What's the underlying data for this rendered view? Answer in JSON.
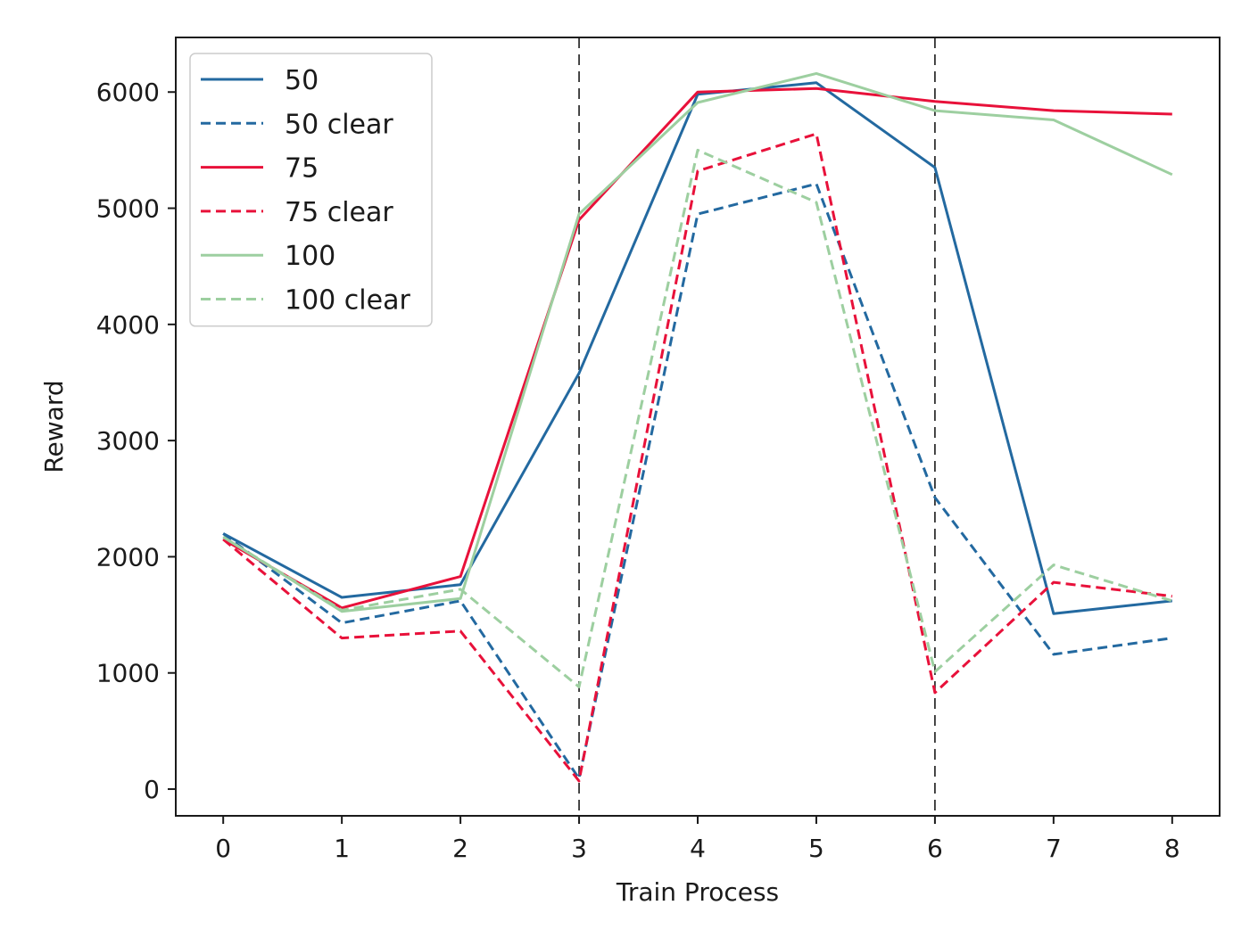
{
  "chart_data": {
    "type": "line",
    "xlabel": "Train Process",
    "ylabel": "Reward",
    "xlim": [
      -0.4,
      8.4
    ],
    "ylim": [
      -230,
      6470
    ],
    "x_ticks": [
      0,
      1,
      2,
      3,
      4,
      5,
      6,
      7,
      8
    ],
    "y_ticks": [
      0,
      1000,
      2000,
      3000,
      4000,
      5000,
      6000
    ],
    "vlines": [
      3,
      6
    ],
    "grid": false,
    "legend_position": "upper left",
    "x": [
      0,
      1,
      2,
      3,
      4,
      5,
      6,
      7,
      8
    ],
    "series": [
      {
        "name": "50",
        "style": "solid",
        "color": "#2369a0",
        "values": [
          2200,
          1650,
          1760,
          3580,
          5980,
          6080,
          5350,
          1510,
          1620
        ]
      },
      {
        "name": "50 clear",
        "style": "dashed",
        "color": "#2369a0",
        "values": [
          2200,
          1430,
          1620,
          90,
          4950,
          5210,
          2510,
          1160,
          1300
        ]
      },
      {
        "name": "75",
        "style": "solid",
        "color": "#e8113a",
        "values": [
          2150,
          1560,
          1830,
          4900,
          6000,
          6030,
          5920,
          5840,
          5810
        ]
      },
      {
        "name": "75 clear",
        "style": "dashed",
        "color": "#e8113a",
        "values": [
          2150,
          1300,
          1360,
          70,
          5320,
          5640,
          830,
          1780,
          1660
        ]
      },
      {
        "name": "100",
        "style": "solid",
        "color": "#9dcfa0",
        "values": [
          2170,
          1530,
          1640,
          4950,
          5910,
          6160,
          5840,
          5760,
          5290
        ]
      },
      {
        "name": "100 clear",
        "style": "dashed",
        "color": "#9dcfa0",
        "values": [
          2170,
          1540,
          1720,
          880,
          5500,
          5050,
          1010,
          1930,
          1620
        ]
      }
    ]
  }
}
